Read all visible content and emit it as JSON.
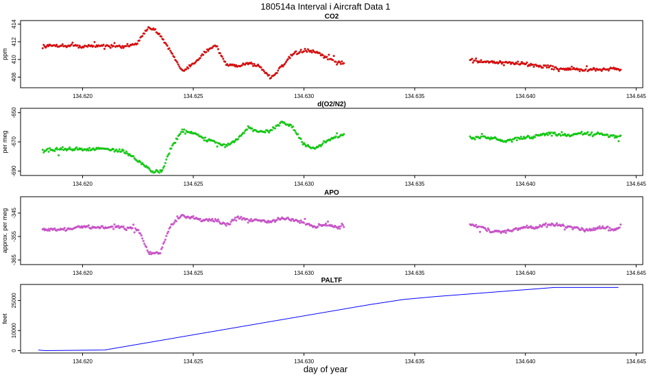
{
  "title": "180514a   Interval i Aircraft Data 1",
  "x_axis_label": "day of year",
  "chart_data": [
    {
      "type": "scatter",
      "title": "CO2",
      "ylabel": "ppm",
      "color": "#ff0000",
      "xlim": [
        134.6172,
        134.6453
      ],
      "ylim": [
        406.8,
        414.4
      ],
      "xticks": [
        134.62,
        134.625,
        134.63,
        134.635,
        134.64,
        134.645
      ],
      "xtick_labels": [
        "134.620",
        "134.625",
        "134.630",
        "134.635",
        "134.640",
        "134.645"
      ],
      "yticks": [
        408,
        410,
        412,
        414
      ],
      "ytick_labels": [
        "408",
        "410",
        "412",
        "414"
      ],
      "segments": [
        {
          "x": [
            134.6182,
            134.619,
            134.62,
            134.621,
            134.6218,
            134.6225,
            134.623,
            134.6235,
            134.624,
            134.6245,
            134.625,
            134.6255,
            134.626,
            134.6265,
            134.627,
            134.6275,
            134.628,
            134.6285,
            134.629,
            134.6295,
            134.63,
            134.6305,
            134.631,
            134.6315,
            134.6318
          ],
          "y": [
            411.5,
            411.6,
            411.5,
            411.6,
            411.4,
            411.9,
            413.8,
            412.8,
            410.8,
            408.6,
            409.5,
            410.8,
            411.6,
            409.4,
            409.3,
            409.6,
            409.2,
            407.9,
            409.2,
            410.6,
            411.0,
            410.9,
            410.2,
            409.7,
            409.6
          ]
        },
        {
          "x": [
            134.6375,
            134.638,
            134.6385,
            134.639,
            134.6395,
            134.64,
            134.6405,
            134.641,
            134.6415,
            134.642,
            134.6425,
            134.643,
            134.6435,
            134.644,
            134.6443
          ],
          "y": [
            410.0,
            409.8,
            409.7,
            409.6,
            409.6,
            409.5,
            409.3,
            409.2,
            409.0,
            408.9,
            408.8,
            408.8,
            408.9,
            409.0,
            408.8
          ]
        }
      ]
    },
    {
      "type": "scatter",
      "title": "d(O2/N2)",
      "ylabel": "per meg",
      "color": "#00ee00",
      "xlim": [
        134.6172,
        134.6453
      ],
      "ylim": [
        -693,
        -647
      ],
      "xticks": [
        134.62,
        134.625,
        134.63,
        134.635,
        134.64,
        134.645
      ],
      "xtick_labels": [
        "134.620",
        "134.625",
        "134.630",
        "134.635",
        "134.640",
        "134.645"
      ],
      "yticks": [
        -690,
        -670,
        -650
      ],
      "ytick_labels": [
        "-690",
        "-670",
        "-650"
      ],
      "segments": [
        {
          "x": [
            134.6182,
            134.619,
            134.62,
            134.621,
            134.6218,
            134.6222,
            134.6228,
            134.6232,
            134.6236,
            134.624,
            134.6245,
            134.625,
            134.6255,
            134.626,
            134.6265,
            134.627,
            134.6275,
            134.628,
            134.6285,
            134.629,
            134.6295,
            134.63,
            134.6305,
            134.631,
            134.6315,
            134.6318
          ],
          "y": [
            -676,
            -675,
            -675,
            -675,
            -676,
            -680,
            -686,
            -691,
            -690,
            -674,
            -662,
            -664,
            -668,
            -670,
            -673,
            -668,
            -660,
            -664,
            -662,
            -656,
            -660,
            -672,
            -675,
            -670,
            -666,
            -665
          ]
        },
        {
          "x": [
            134.6375,
            134.638,
            134.6385,
            134.639,
            134.6395,
            134.64,
            134.6405,
            134.641,
            134.6415,
            134.642,
            134.6425,
            134.643,
            134.6435,
            134.644,
            134.6443
          ],
          "y": [
            -667,
            -667,
            -667,
            -670,
            -668,
            -667,
            -666,
            -664,
            -665,
            -666,
            -664,
            -665,
            -665,
            -666,
            -666
          ]
        }
      ]
    },
    {
      "type": "scatter",
      "title": "APO",
      "ylabel": "approx. per meg",
      "color": "#ee55ee",
      "xlim": [
        134.6172,
        134.6453
      ],
      "ylim": [
        -367,
        -338
      ],
      "xticks": [
        134.62,
        134.625,
        134.63,
        134.635,
        134.64,
        134.645
      ],
      "xtick_labels": [
        "134.620",
        "134.625",
        "134.630",
        "134.635",
        "134.640",
        "134.645"
      ],
      "yticks": [
        -365,
        -355,
        -345
      ],
      "ytick_labels": [
        "-365",
        "-355",
        "-345"
      ],
      "segments": [
        {
          "x": [
            134.6182,
            134.619,
            134.62,
            134.621,
            134.6218,
            134.6225,
            134.623,
            134.6235,
            134.624,
            134.6245,
            134.625,
            134.6255,
            134.626,
            134.6265,
            134.627,
            134.6275,
            134.628,
            134.6285,
            134.629,
            134.6295,
            134.63,
            134.6305,
            134.631,
            134.6315,
            134.6318
          ],
          "y": [
            -352,
            -352,
            -351,
            -351,
            -351,
            -352,
            -362,
            -362,
            -350,
            -346,
            -347,
            -348,
            -348,
            -350,
            -347,
            -348,
            -348,
            -349,
            -347,
            -348,
            -349,
            -351,
            -350,
            -351,
            -350
          ]
        },
        {
          "x": [
            134.6375,
            134.638,
            134.6385,
            134.639,
            134.6395,
            134.64,
            134.6405,
            134.641,
            134.6415,
            134.642,
            134.6425,
            134.643,
            134.6435,
            134.644,
            134.6443
          ],
          "y": [
            -350,
            -351,
            -353,
            -353,
            -352,
            -351,
            -351,
            -350,
            -350,
            -351,
            -352,
            -352,
            -351,
            -352,
            -351
          ]
        }
      ]
    },
    {
      "type": "line",
      "title": "PALTF",
      "ylabel": "feet",
      "color": "#0000ff",
      "xlim": [
        134.6172,
        134.6453
      ],
      "ylim": [
        -1200,
        33000
      ],
      "xticks": [
        134.62,
        134.625,
        134.63,
        134.635,
        134.64,
        134.645
      ],
      "xtick_labels": [
        "134.620",
        "134.625",
        "134.630",
        "134.635",
        "134.640",
        "134.645"
      ],
      "yticks": [
        0,
        10000,
        25000
      ],
      "ytick_labels": [
        "0",
        "10000",
        "25000"
      ],
      "x": [
        134.618,
        134.6183,
        134.621,
        134.633,
        134.6345,
        134.636,
        134.6413,
        134.6442
      ],
      "y": [
        300,
        0,
        300,
        23000,
        25500,
        27000,
        31500,
        31500
      ]
    }
  ]
}
